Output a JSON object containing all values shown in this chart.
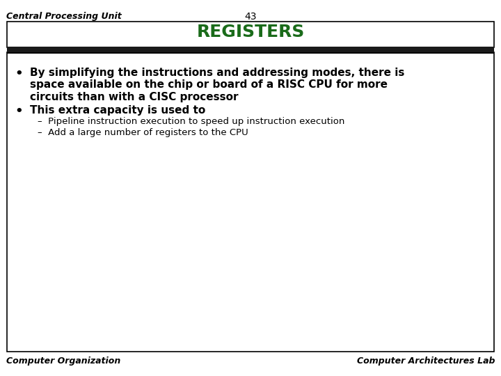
{
  "header_left": "Central Processing Unit",
  "header_center": "43",
  "title": "REGISTERS",
  "title_color": "#1a6b1a",
  "footer_left": "Computer Organization",
  "footer_right": "Computer Architectures Lab",
  "background_color": "#ffffff",
  "line1": "By simplifying the instructions and addressing modes, there is",
  "line2": "space available on the chip or board of a RISC CPU for more",
  "line3": "circuits than with a CISC processor",
  "bullet2": "This extra capacity is used to",
  "sub1": "Pipeline instruction execution to speed up instruction execution",
  "sub2": "Add a large number of registers to the CPU",
  "header_font_size": 9,
  "title_font_size": 18,
  "bullet_font_size": 11,
  "sub_font_size": 9.5,
  "footer_font_size": 9
}
